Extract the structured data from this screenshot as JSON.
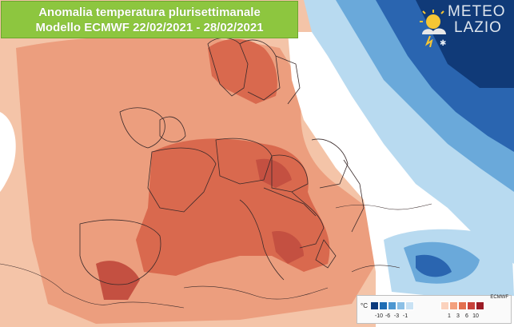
{
  "title": {
    "line1": "Anomalia temperatura plurisettimanale",
    "line2": "Modello ECMWF 22/02/2021 - 28/02/2021"
  },
  "logo": {
    "line1": "METEO",
    "line2": "LAZIO"
  },
  "legend": {
    "unit": "°C",
    "source": "ECMWF",
    "cold_swatches": [
      "#0b3a7c",
      "#1f6db4",
      "#4d97d1",
      "#8cc0e6",
      "#c9e2f4"
    ],
    "warm_swatches": [
      "#fbd2bd",
      "#f3a07d",
      "#e3704f",
      "#c8413a",
      "#9b1b25"
    ],
    "cold_labels": [
      "-10",
      "-6",
      "-3",
      "-1"
    ],
    "warm_labels": [
      "1",
      "3",
      "6",
      "10"
    ]
  },
  "colors": {
    "light_warm": "#f4c4a8",
    "mid_warm": "#ec9e7e",
    "strong_warm": "#d9694e",
    "deep_warm": "#c45041",
    "light_cold": "#b8daf0",
    "mid_cold": "#6aa9da",
    "deep_cold": "#2a65b0",
    "darkest_cold": "#103a78",
    "border": "#3a2a2a",
    "title_bg": "#8dc63f"
  }
}
